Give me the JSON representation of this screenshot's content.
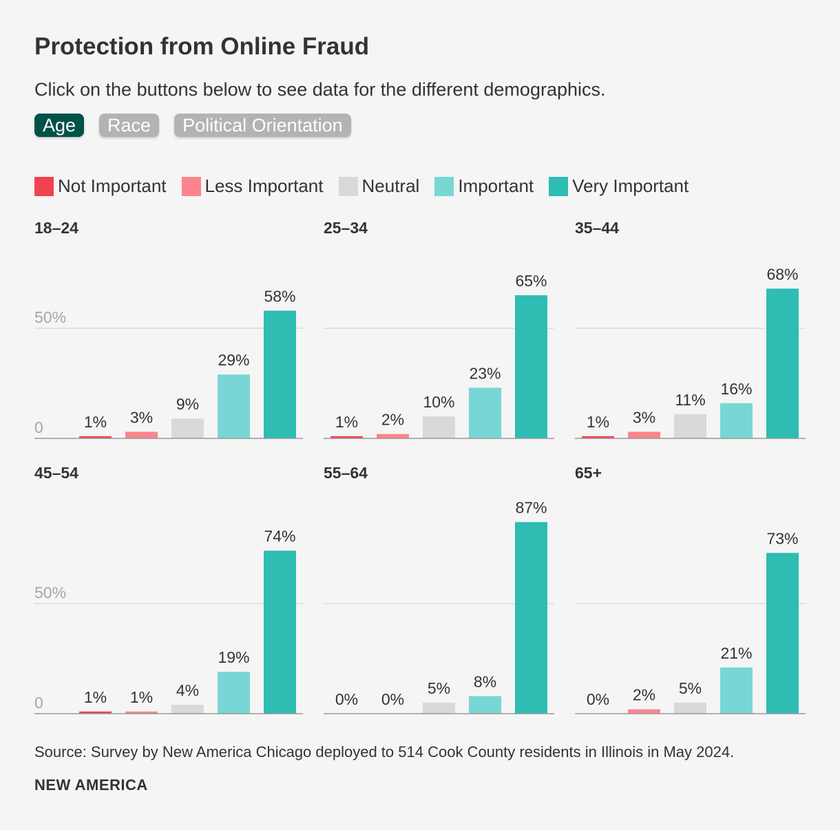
{
  "title": "Protection from Online Fraud",
  "subtitle": "Click on the buttons below to see data for the different demographics.",
  "tabs": [
    {
      "label": "Age",
      "active": true
    },
    {
      "label": "Race",
      "active": false
    },
    {
      "label": "Political Orientation",
      "active": false
    }
  ],
  "colors": {
    "not_important": "#f0424f",
    "less_important": "#fa858e",
    "neutral": "#d9d9d9",
    "important": "#78d7d4",
    "very_important": "#2ebcb3",
    "active_tab": "#005248",
    "inactive_tab": "#b3b3b3"
  },
  "chart_data": {
    "type": "bar",
    "categories": [
      "Not Important",
      "Less Important",
      "Neutral",
      "Important",
      "Very Important"
    ],
    "ylim": [
      0,
      100
    ],
    "y_ticks": [
      {
        "value": 0,
        "label": "0"
      },
      {
        "value": 50,
        "label": "50%"
      }
    ],
    "value_suffix": "%",
    "panels": [
      {
        "title": "18–24",
        "values": [
          1,
          3,
          9,
          29,
          58
        ]
      },
      {
        "title": "25–34",
        "values": [
          1,
          2,
          10,
          23,
          65
        ]
      },
      {
        "title": "35–44",
        "values": [
          1,
          3,
          11,
          16,
          68
        ]
      },
      {
        "title": "45–54",
        "values": [
          1,
          1,
          4,
          19,
          74
        ]
      },
      {
        "title": "55–64",
        "values": [
          0,
          0,
          5,
          8,
          87
        ]
      },
      {
        "title": "65+",
        "values": [
          0,
          2,
          5,
          21,
          73
        ]
      }
    ]
  },
  "footer": {
    "source": "Source: Survey by New America Chicago deployed to 514 Cook County residents in Illinois in May 2024.",
    "brand": "NEW AMERICA"
  }
}
